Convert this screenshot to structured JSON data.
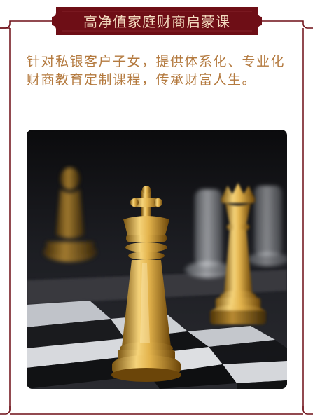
{
  "header": {
    "title": "高净值家庭财商启蒙课"
  },
  "intro": {
    "text": "针对私银客户子女，提供体系化、专业化财商教育定制课程，传承财富人生。"
  },
  "image": {
    "subject": "gold chess king on checkerboard"
  },
  "colors": {
    "frame": "#6e0e16",
    "title_text": "#f4dcc0",
    "body_text": "#b47a3f"
  }
}
